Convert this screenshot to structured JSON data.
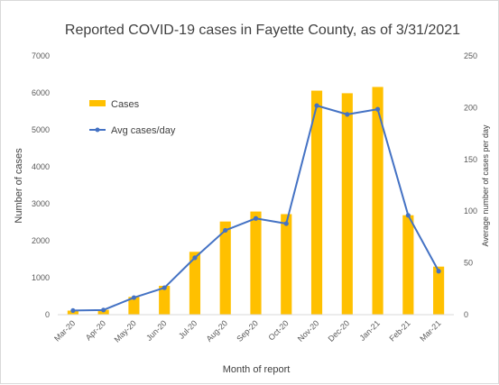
{
  "chart_data": {
    "type": "bar",
    "title": "Reported COVID-19 cases in Fayette County, as of 3/31/2021",
    "xlabel": "Month of report",
    "ylabel": "Number of cases",
    "y2label": "Average number of cases per day",
    "categories": [
      "Mar-20",
      "Apr-20",
      "May-20",
      "Jun-20",
      "Jul-20",
      "Aug-20",
      "Sep-20",
      "Oct-20",
      "Nov-20",
      "Dec-20",
      "Jan-21",
      "Feb-21",
      "Mar-21"
    ],
    "ylim": [
      0,
      7000
    ],
    "yticks": [
      0,
      1000,
      2000,
      3000,
      4000,
      5000,
      6000,
      7000
    ],
    "y2lim": [
      0,
      250
    ],
    "y2ticks": [
      0,
      50,
      100,
      150,
      200,
      250
    ],
    "series": [
      {
        "name": "Cases",
        "type": "bar",
        "axis": "left",
        "color": "#ffc000",
        "values": [
          110,
          130,
          480,
          780,
          1700,
          2520,
          2790,
          2720,
          6060,
          5990,
          6160,
          2690,
          1300
        ]
      },
      {
        "name": "Avg cases/day",
        "type": "line",
        "axis": "right",
        "color": "#4472c4",
        "values": [
          4,
          4.5,
          16.5,
          26,
          55,
          81.5,
          93,
          88,
          202,
          193.5,
          198.5,
          96,
          42
        ]
      }
    ],
    "legend_position": "upper-left-inside",
    "grid": false
  }
}
